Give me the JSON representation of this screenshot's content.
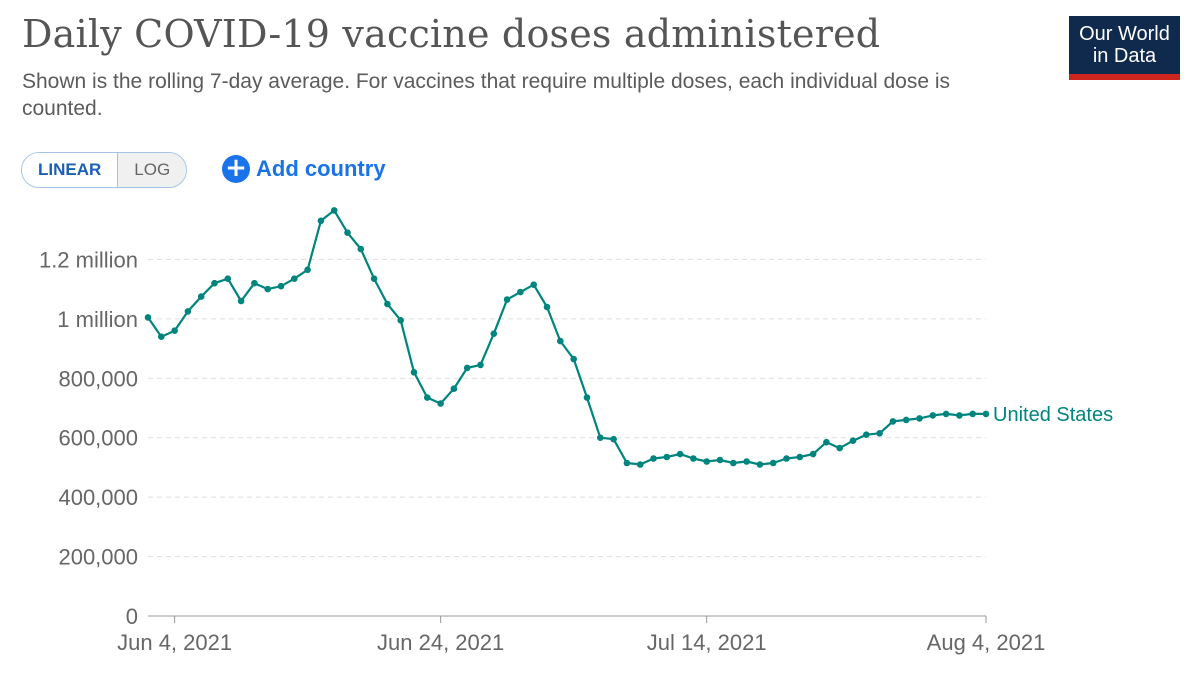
{
  "header": {
    "title": "Daily COVID-19 vaccine doses administered",
    "subtitle": "Shown is the rolling 7-day average. For vaccines that require multiple doses, each individual dose is counted.",
    "logo_line1": "Our World",
    "logo_line2": "in Data"
  },
  "controls": {
    "linear_label": "LINEAR",
    "log_label": "LOG",
    "add_country_label": "Add country",
    "add_icon": "plus-circle-icon"
  },
  "colors": {
    "series": "#00847e",
    "logo_bg": "#0f2a4d",
    "logo_accent": "#ce261e",
    "link": "#1a73e8"
  },
  "chart_data": {
    "type": "line",
    "title": "Daily COVID-19 vaccine doses administered",
    "ylim": [
      0,
      1400000
    ],
    "y_ticks": [
      {
        "value": 0,
        "label": "0"
      },
      {
        "value": 200000,
        "label": "200,000"
      },
      {
        "value": 400000,
        "label": "400,000"
      },
      {
        "value": 600000,
        "label": "600,000"
      },
      {
        "value": 800000,
        "label": "800,000"
      },
      {
        "value": 1000000,
        "label": "1 million"
      },
      {
        "value": 1200000,
        "label": "1.2 million"
      }
    ],
    "x_start": "2021-06-02",
    "x_ticks": [
      {
        "date": "2021-06-04",
        "label": "Jun 4, 2021"
      },
      {
        "date": "2021-06-24",
        "label": "Jun 24, 2021"
      },
      {
        "date": "2021-07-14",
        "label": "Jul 14, 2021"
      },
      {
        "date": "2021-08-04",
        "label": "Aug 4, 2021"
      }
    ],
    "grid": "horizontal",
    "series": [
      {
        "name": "United States",
        "x": [
          "2021-06-02",
          "2021-06-03",
          "2021-06-04",
          "2021-06-05",
          "2021-06-06",
          "2021-06-07",
          "2021-06-08",
          "2021-06-09",
          "2021-06-10",
          "2021-06-11",
          "2021-06-12",
          "2021-06-13",
          "2021-06-14",
          "2021-06-15",
          "2021-06-16",
          "2021-06-17",
          "2021-06-18",
          "2021-06-19",
          "2021-06-20",
          "2021-06-21",
          "2021-06-22",
          "2021-06-23",
          "2021-06-24",
          "2021-06-25",
          "2021-06-26",
          "2021-06-27",
          "2021-06-28",
          "2021-06-29",
          "2021-06-30",
          "2021-07-01",
          "2021-07-02",
          "2021-07-03",
          "2021-07-04",
          "2021-07-05",
          "2021-07-06",
          "2021-07-07",
          "2021-07-08",
          "2021-07-09",
          "2021-07-10",
          "2021-07-11",
          "2021-07-12",
          "2021-07-13",
          "2021-07-14",
          "2021-07-15",
          "2021-07-16",
          "2021-07-17",
          "2021-07-18",
          "2021-07-19",
          "2021-07-20",
          "2021-07-21",
          "2021-07-22",
          "2021-07-23",
          "2021-07-24",
          "2021-07-25",
          "2021-07-26",
          "2021-07-27",
          "2021-07-28",
          "2021-07-29",
          "2021-07-30",
          "2021-07-31",
          "2021-08-01",
          "2021-08-02",
          "2021-08-03",
          "2021-08-04"
        ],
        "values": [
          1005000,
          940000,
          960000,
          1025000,
          1075000,
          1120000,
          1135000,
          1060000,
          1120000,
          1100000,
          1110000,
          1135000,
          1165000,
          1330000,
          1365000,
          1290000,
          1235000,
          1135000,
          1050000,
          995000,
          820000,
          735000,
          715000,
          765000,
          835000,
          845000,
          950000,
          1065000,
          1090000,
          1115000,
          1040000,
          925000,
          865000,
          735000,
          600000,
          595000,
          515000,
          510000,
          530000,
          535000,
          545000,
          530000,
          520000,
          525000,
          515000,
          520000,
          510000,
          515000,
          530000,
          535000,
          545000,
          585000,
          565000,
          590000,
          610000,
          615000,
          655000,
          660000,
          665000,
          675000,
          680000,
          675000,
          680000,
          680000
        ]
      }
    ]
  }
}
